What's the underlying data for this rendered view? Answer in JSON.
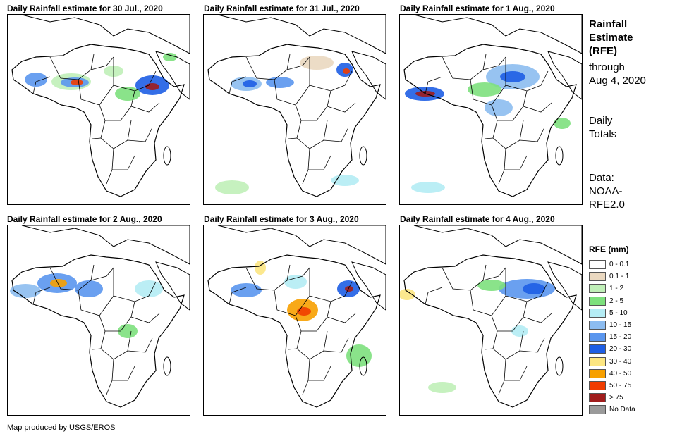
{
  "panels": [
    {
      "title": "Daily Rainfall estimate for 30 Jul., 2020"
    },
    {
      "title": "Daily Rainfall estimate for 31 Jul., 2020"
    },
    {
      "title": "Daily Rainfall estimate for 1 Aug., 2020"
    },
    {
      "title": "Daily Rainfall estimate for 2 Aug., 2020"
    },
    {
      "title": "Daily Rainfall estimate for 3 Aug., 2020"
    },
    {
      "title": "Daily Rainfall estimate for 4 Aug., 2020"
    }
  ],
  "sidebar": {
    "title_line1": "Rainfall",
    "title_line2": "Estimate",
    "title_line3": "(RFE)",
    "through_line1": "through",
    "through_line2": "Aug 4, 2020",
    "daily_line1": "Daily",
    "daily_line2": "Totals",
    "data_line1": "Data:",
    "data_line2": "NOAA-",
    "data_line3": "RFE2.0"
  },
  "legend": {
    "title": "RFE (mm)",
    "items": [
      {
        "label": "0 - 0.1",
        "color": "#ffffff"
      },
      {
        "label": "0.1 - 1",
        "color": "#ead8c0"
      },
      {
        "label": "1 - 2",
        "color": "#c0f0b8"
      },
      {
        "label": "2 - 5",
        "color": "#7de07d"
      },
      {
        "label": "5 - 10",
        "color": "#b4ecf4"
      },
      {
        "label": "10 - 15",
        "color": "#8cbcf0"
      },
      {
        "label": "15 - 20",
        "color": "#5a96ee"
      },
      {
        "label": "20 - 30",
        "color": "#1e5ee4"
      },
      {
        "label": "30 - 40",
        "color": "#fce682"
      },
      {
        "label": "40 - 50",
        "color": "#f7a000"
      },
      {
        "label": "50 - 75",
        "color": "#f03c00"
      },
      {
        "label": "> 75",
        "color": "#a01c1c"
      },
      {
        "label": "No Data",
        "color": "#9a9a9a"
      }
    ]
  },
  "credit": "Map produced by USGS/EROS"
}
